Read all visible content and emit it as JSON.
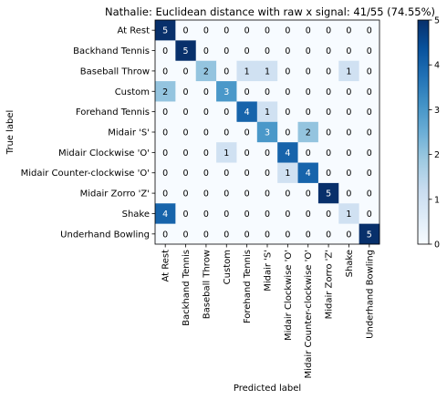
{
  "chart_data": {
    "type": "heatmap",
    "title": "Nathalie: Euclidean distance with raw x signal: 41/55 (74.55%)",
    "xlabel": "Predicted label",
    "ylabel": "True label",
    "row_labels": [
      "At Rest",
      "Backhand Tennis",
      "Baseball Throw",
      "Custom",
      "Forehand Tennis",
      "Midair 'S'",
      "Midair Clockwise 'O'",
      "Midair Counter-clockwise 'O'",
      "Midair Zorro 'Z'",
      "Shake",
      "Underhand Bowling"
    ],
    "col_labels": [
      "At Rest",
      "Backhand Tennis",
      "Baseball Throw",
      "Custom",
      "Forehand Tennis",
      "Midair 'S'",
      "Midair Clockwise 'O'",
      "Midair Counter-clockwise 'O'",
      "Midair Zorro 'Z'",
      "Shake",
      "Underhand Bowling"
    ],
    "matrix": [
      [
        5,
        0,
        0,
        0,
        0,
        0,
        0,
        0,
        0,
        0,
        0
      ],
      [
        0,
        5,
        0,
        0,
        0,
        0,
        0,
        0,
        0,
        0,
        0
      ],
      [
        0,
        0,
        2,
        0,
        1,
        1,
        0,
        0,
        0,
        1,
        0
      ],
      [
        2,
        0,
        0,
        3,
        0,
        0,
        0,
        0,
        0,
        0,
        0
      ],
      [
        0,
        0,
        0,
        0,
        4,
        1,
        0,
        0,
        0,
        0,
        0
      ],
      [
        0,
        0,
        0,
        0,
        0,
        3,
        0,
        2,
        0,
        0,
        0
      ],
      [
        0,
        0,
        0,
        1,
        0,
        0,
        4,
        0,
        0,
        0,
        0
      ],
      [
        0,
        0,
        0,
        0,
        0,
        0,
        1,
        4,
        0,
        0,
        0
      ],
      [
        0,
        0,
        0,
        0,
        0,
        0,
        0,
        0,
        5,
        0,
        0
      ],
      [
        4,
        0,
        0,
        0,
        0,
        0,
        0,
        0,
        0,
        1,
        0
      ],
      [
        0,
        0,
        0,
        0,
        0,
        0,
        0,
        0,
        0,
        0,
        5
      ]
    ],
    "colorbar": {
      "colormap": "Blues",
      "range": [
        0,
        5
      ],
      "ticks": [
        "0",
        "1",
        "2",
        "3",
        "4",
        "5"
      ]
    }
  }
}
